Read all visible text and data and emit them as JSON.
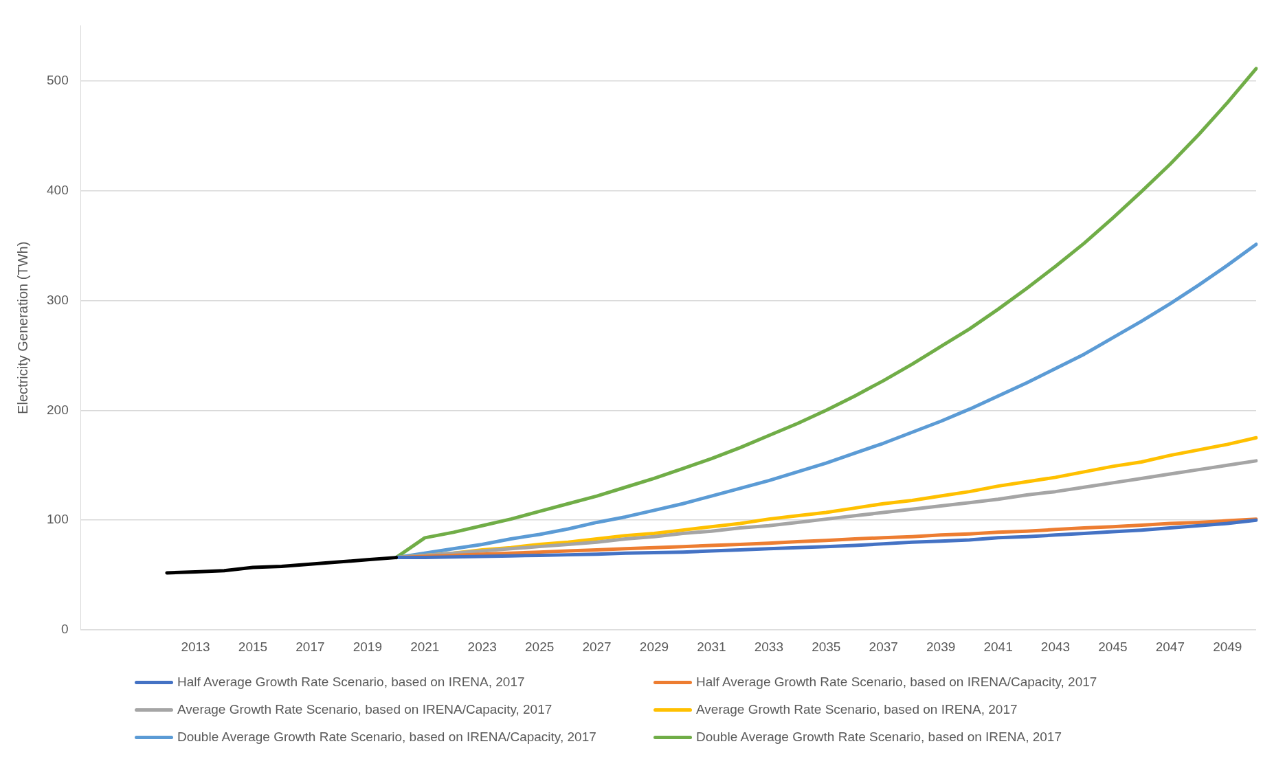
{
  "chart_data": {
    "type": "line",
    "ylabel": "Electricity Generation (TWh)",
    "categories": [
      null,
      null,
      null,
      null,
      "2013",
      null,
      "2015",
      null,
      "2017",
      null,
      "2019",
      null,
      "2021",
      null,
      "2023",
      null,
      "2025",
      null,
      "2027",
      null,
      "2029",
      null,
      "2031",
      null,
      "2033",
      null,
      "2035",
      null,
      "2037",
      null,
      "2039",
      null,
      "2041",
      null,
      "2043",
      null,
      "2045",
      null,
      "2047",
      null,
      "2049",
      null
    ],
    "ylim": [
      0,
      550
    ],
    "yticks": [
      0,
      100,
      200,
      300,
      400,
      500
    ],
    "grid": "y",
    "legend": "bottom",
    "line_style": "solid",
    "marker": "none",
    "series": [
      {
        "color": "#000000",
        "values": [
          null,
          null,
          null,
          52,
          53,
          54,
          57,
          58,
          60,
          62,
          64,
          66,
          null,
          null,
          null,
          null,
          null,
          null,
          null,
          null,
          null,
          null,
          null,
          null,
          null,
          null,
          null,
          null,
          null,
          null,
          null,
          null,
          null,
          null,
          null,
          null,
          null,
          null,
          null,
          null,
          null,
          null
        ]
      },
      {
        "name": "Half Average Growth Rate Scenario, based on IRENA, 2017",
        "color": "#4472c4",
        "values": [
          null,
          null,
          null,
          null,
          null,
          null,
          null,
          null,
          null,
          null,
          null,
          66,
          66,
          66.5,
          67,
          67.5,
          68,
          68.5,
          69,
          70,
          70.5,
          71,
          72,
          73,
          74,
          75,
          76,
          77,
          78.5,
          80,
          81,
          82,
          84,
          85,
          86.5,
          88,
          89.5,
          91,
          93,
          95,
          97,
          100
        ]
      },
      {
        "name": "Half Average Growth Rate Scenario, based on IRENA/Capacity, 2017",
        "color": "#ed7d31",
        "values": [
          null,
          null,
          null,
          null,
          null,
          null,
          null,
          null,
          null,
          null,
          null,
          66,
          67,
          68,
          69,
          70,
          71,
          72,
          73,
          74,
          75,
          76,
          77,
          78,
          79,
          80.5,
          81.5,
          83,
          84,
          85,
          86.5,
          87.5,
          89,
          90,
          91.5,
          93,
          94,
          95.5,
          97,
          98,
          99.5,
          101
        ]
      },
      {
        "name": "Average Growth Rate Scenario, based on IRENA/Capacity, 2017",
        "color": "#a5a5a5",
        "values": [
          null,
          null,
          null,
          null,
          null,
          null,
          null,
          null,
          null,
          null,
          null,
          66,
          68,
          70,
          72,
          74,
          76,
          78,
          80,
          83,
          85,
          88,
          90,
          93,
          95,
          98,
          101,
          104,
          107,
          110,
          113,
          116,
          119,
          123,
          126,
          130,
          134,
          138,
          142,
          146,
          150,
          154
        ]
      },
      {
        "name": "Average Growth Rate Scenario, based on IRENA, 2017",
        "color": "#ffc000",
        "values": [
          null,
          null,
          null,
          null,
          null,
          null,
          null,
          null,
          null,
          null,
          null,
          66,
          68,
          70,
          73,
          75,
          78,
          80,
          83,
          86,
          88,
          91,
          94,
          97,
          101,
          104,
          107,
          111,
          115,
          118,
          122,
          126,
          131,
          135,
          139,
          144,
          149,
          153,
          159,
          164,
          169,
          175
        ]
      },
      {
        "name": "Double Average Growth Rate Scenario, based on IRENA/Capacity, 2017",
        "color": "#5b9bd5",
        "values": [
          null,
          null,
          null,
          null,
          null,
          null,
          null,
          null,
          null,
          null,
          null,
          66,
          70,
          74,
          78,
          83,
          87,
          92,
          98,
          103,
          109,
          115,
          122,
          129,
          136,
          144,
          152,
          161,
          170,
          180,
          190,
          201,
          213,
          225,
          238,
          251,
          266,
          281,
          297,
          314,
          332,
          351
        ]
      },
      {
        "name": "Double Average Growth Rate Scenario, based on IRENA, 2017",
        "color": "#70ad47",
        "values": [
          null,
          null,
          null,
          null,
          null,
          null,
          null,
          null,
          null,
          null,
          null,
          66,
          84,
          89,
          95,
          101,
          108,
          115,
          122,
          130,
          138,
          147,
          156,
          166,
          177,
          188,
          200,
          213,
          227,
          242,
          258,
          274,
          292,
          311,
          331,
          352,
          375,
          399,
          424,
          451,
          480,
          511
        ]
      }
    ]
  }
}
